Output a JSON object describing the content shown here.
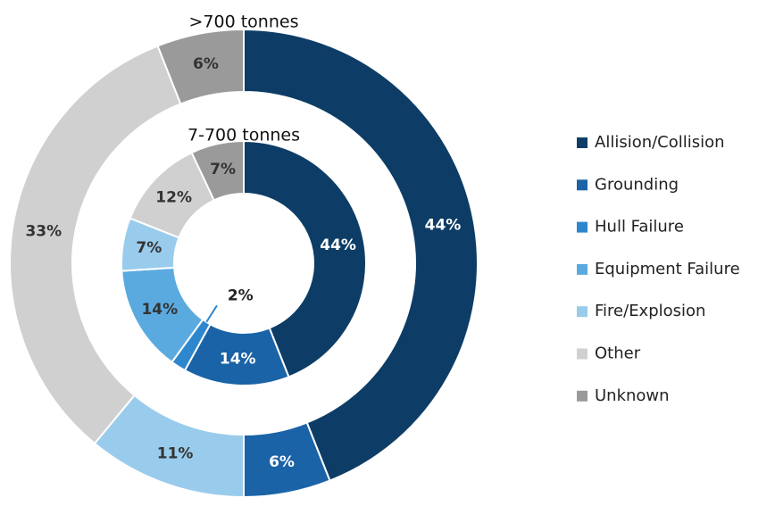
{
  "chart_data": {
    "type": "donut",
    "categories": [
      "Allision/Collision",
      "Grounding",
      "Hull Failure",
      "Equipment Failure",
      "Fire/Explosion",
      "Other",
      "Unknown"
    ],
    "colors": [
      "#0d3d66",
      "#1a63a6",
      "#2e86cc",
      "#5aaae0",
      "#99ccec",
      "#d0d0d0",
      "#9a9a9a"
    ],
    "series": [
      {
        "name": ">700 tonnes",
        "values": [
          44,
          6,
          null,
          null,
          11,
          33,
          6
        ],
        "value_labels": [
          "44%",
          "6%",
          null,
          null,
          "11%",
          "33%",
          "6%"
        ]
      },
      {
        "name": "7-700 tonnes",
        "values": [
          44,
          14,
          2,
          14,
          7,
          12,
          7
        ],
        "value_labels": [
          "44%",
          "14%",
          "2%",
          "14%",
          "7%",
          "12%",
          "7%"
        ]
      }
    ],
    "legend": "right"
  }
}
